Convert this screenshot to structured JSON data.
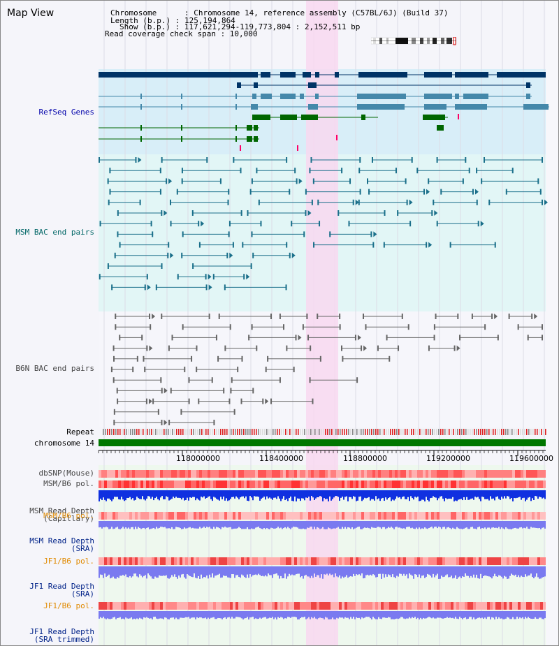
{
  "title": "Map View",
  "header": {
    "line1": "Chromosome      : Chromosome 14, reference assembly (C57BL/6J) (Build 37)",
    "line2": "Length (b.p.) : 125,194,864",
    "line3": "Show (b.p.) : 117,621,294-119,773,804 : 2,152,511 bp",
    "line4": "Read coverage check span : 10,000"
  },
  "tracks": {
    "refseq": "RefSeq Genes",
    "msm_bac": "MSM BAC end pairs",
    "b6n_bac": "B6N BAC end pairs",
    "repeat": "Repeat",
    "chromosome": "chromosome 14",
    "dbsnp": "dbSNP(Mouse)",
    "msm_pol": "MSM/B6 pol.",
    "msm_depth_cap_1": "MSM Read Depth",
    "msm_depth_cap_2": "(Capillary)",
    "msm_pol_sra": "MSM/B6 pol.",
    "msm_depth_sra_1": "MSM Read Depth",
    "msm_depth_sra_2": "(SRA)",
    "jf1_pol": "JF1/B6 pol.",
    "jf1_depth_1": "JF1 Read Depth",
    "jf1_depth_2": "(SRA)",
    "jf1_pol_2": "JF1/B6 pol.",
    "jf1_depth_tr_1": "JF1 Read Depth",
    "jf1_depth_tr_2": "(SRA trimmed)"
  },
  "axis": {
    "ticks": [
      "118000000",
      "118400000",
      "118800000",
      "119200000",
      "119600000"
    ]
  },
  "colors": {
    "gene": "#003366",
    "gene_mid": "#4488aa",
    "gene_green": "#006600",
    "refseq_bg": "#d8eef8",
    "msm_bg": "#e2f6f6",
    "highlight": "#f8d8f0",
    "chrom": "#007700",
    "snp": "#ff4444",
    "depth_blue": "#1030e0",
    "depth_light": "#7a7af0"
  }
}
